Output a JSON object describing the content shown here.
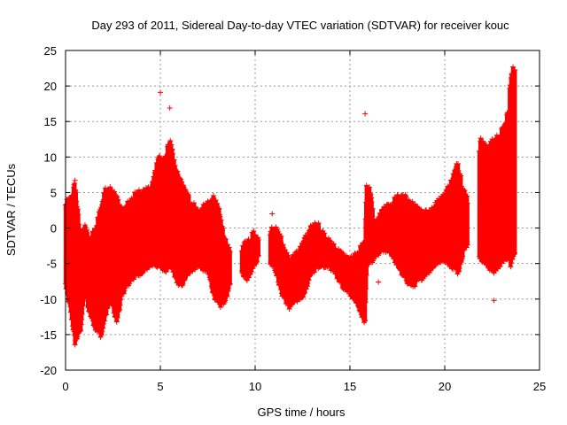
{
  "chart_data": {
    "type": "scatter",
    "title": "Day 293 of 2011, Sidereal Day-to-day VTEC variation (SDTVAR) for receiver kouc",
    "xlabel": "GPS time / hours",
    "ylabel": "SDTVAR / TECUs",
    "xlim": [
      0,
      25
    ],
    "ylim": [
      -20,
      25
    ],
    "xticks": [
      0,
      5,
      10,
      15,
      20,
      25
    ],
    "yticks": [
      -20,
      -15,
      -10,
      -5,
      0,
      5,
      10,
      15,
      20,
      25
    ],
    "grid": true,
    "marker": "+",
    "color": "#ff0000",
    "series": [
      {
        "name": "SDTVAR",
        "envelope_hours": [
          0.0,
          0.3,
          0.5,
          0.8,
          1.0,
          1.3,
          1.6,
          1.9,
          2.1,
          2.4,
          2.7,
          3.0,
          3.5,
          4.0,
          4.5,
          4.9,
          5.2,
          5.5,
          5.8,
          6.1,
          6.5,
          7.0,
          7.5,
          7.8,
          8.1,
          8.4,
          8.7,
          9.0,
          9.3,
          9.6,
          9.9,
          10.2,
          11.0,
          11.4,
          11.8,
          12.2,
          12.6,
          13.0,
          13.4,
          13.8,
          14.2,
          14.6,
          15.0,
          15.3,
          15.6,
          15.8,
          15.9,
          16.3,
          16.7,
          17.1,
          17.5,
          17.9,
          18.3,
          18.7,
          19.1,
          19.5,
          19.9,
          20.3,
          20.7,
          21.0,
          21.2,
          21.9,
          22.2,
          22.6,
          22.9,
          23.2,
          23.5,
          23.7
        ],
        "upper": [
          3,
          4,
          6,
          -2,
          0,
          -2,
          0,
          3,
          5,
          5,
          4,
          2,
          4,
          5,
          5,
          10,
          9,
          12,
          8,
          6,
          4,
          2,
          3,
          4,
          2,
          -2,
          -4,
          -4,
          -3,
          -2,
          -1,
          -2,
          0,
          -2,
          -5,
          -4,
          -2,
          0,
          0,
          -2,
          -3,
          -4,
          -5,
          -4,
          -3,
          -2,
          8,
          0,
          2,
          3,
          4,
          4,
          3,
          2,
          2,
          3,
          4,
          6,
          9,
          5,
          4,
          12,
          11,
          12,
          13,
          14,
          21,
          23
        ],
        "lower": [
          -8,
          -12,
          -16,
          -14,
          -9,
          -12,
          -14,
          -15,
          -12,
          -10,
          -13,
          -9,
          -7,
          -6,
          -5,
          -5,
          -6,
          -5,
          -7,
          -8,
          -6,
          -5,
          -6,
          -9,
          -11,
          -10,
          -8,
          -7,
          -6,
          -7,
          -5,
          -4,
          -5,
          -9,
          -11,
          -10,
          -9,
          -6,
          -5,
          -5,
          -6,
          -8,
          -9,
          -10,
          -12,
          -13,
          -5,
          -4,
          -3,
          -3,
          -5,
          -7,
          -8,
          -7,
          -6,
          -5,
          -4,
          -5,
          -6,
          -3,
          -2,
          -4,
          -5,
          -6,
          -5,
          -4,
          -5,
          -3
        ],
        "gaps": [
          [
            8.7,
            9.3
          ],
          [
            10.2,
            10.8
          ],
          [
            15.9,
            16.0
          ],
          [
            21.2,
            21.8
          ],
          [
            22.8,
            22.9
          ],
          [
            23.3,
            23.4
          ]
        ],
        "outliers": [
          [
            0.5,
            6.7
          ],
          [
            5.0,
            19.1
          ],
          [
            5.5,
            16.9
          ],
          [
            10.9,
            2.0
          ],
          [
            15.8,
            16.1
          ],
          [
            16.5,
            -7.6
          ],
          [
            19.5,
            3.6
          ],
          [
            22.6,
            -10.2
          ],
          [
            1.5,
            -8.0
          ],
          [
            2.7,
            -13.0
          ]
        ]
      }
    ]
  }
}
